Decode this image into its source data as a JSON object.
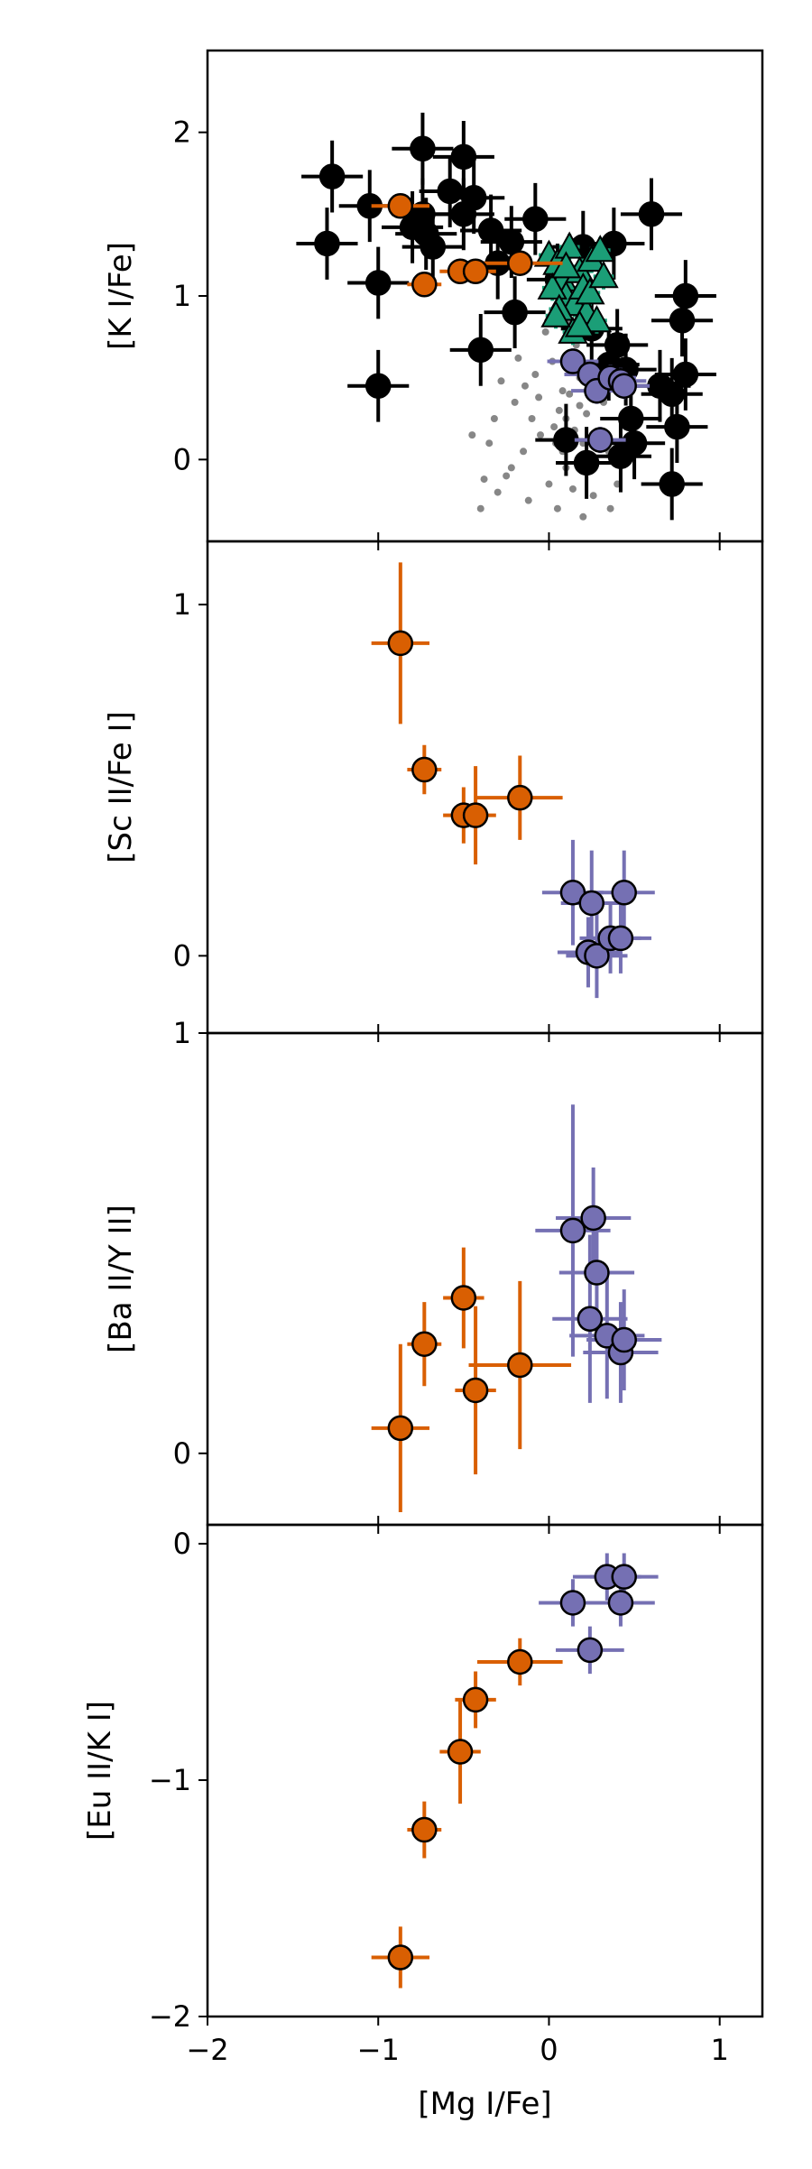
{
  "chart_data": [
    {
      "type": "scatter",
      "ylabel": "[K I/Fe]",
      "xlabel": "",
      "xlim": [
        -2,
        1.25
      ],
      "ylim": [
        -0.5,
        2.5
      ],
      "yticks": [
        0,
        1,
        2
      ],
      "yticklabels": [
        "0",
        "1",
        "2"
      ],
      "xticks": [
        -2,
        -1,
        0,
        1
      ],
      "series": [
        {
          "color": "#696969",
          "marker": "small-dot",
          "points": [
            [
              0.06,
              0.3
            ],
            [
              0.1,
              0.25
            ],
            [
              0.12,
              0.4
            ],
            [
              0.15,
              0.18
            ],
            [
              0.18,
              0.33
            ],
            [
              0.2,
              0.1
            ],
            [
              0.22,
              0.28
            ],
            [
              0.25,
              0.45
            ],
            [
              0.03,
              0.2
            ],
            [
              0.08,
              0.05
            ],
            [
              -0.05,
              0.15
            ],
            [
              -0.1,
              0.25
            ],
            [
              -0.15,
              0.05
            ],
            [
              -0.2,
              0.35
            ],
            [
              -0.25,
              -0.1
            ],
            [
              -0.3,
              -0.2
            ],
            [
              -0.35,
              0.1
            ],
            [
              -0.4,
              -0.3
            ],
            [
              -0.45,
              0.15
            ],
            [
              -0.28,
              0.48
            ],
            [
              0.28,
              0.15
            ],
            [
              0.32,
              0.35
            ],
            [
              0.35,
              0.05
            ],
            [
              0.4,
              -0.15
            ],
            [
              0.14,
              0.55
            ],
            [
              0.02,
              0.6
            ],
            [
              -0.08,
              0.52
            ],
            [
              0.16,
              0.7
            ],
            [
              0.1,
              -0.05
            ],
            [
              0.0,
              -0.15
            ],
            [
              -0.12,
              -0.25
            ],
            [
              0.05,
              -0.3
            ],
            [
              0.2,
              -0.35
            ],
            [
              -0.18,
              0.62
            ],
            [
              0.26,
              -0.22
            ],
            [
              0.12,
              0.85
            ],
            [
              -0.02,
              0.78
            ],
            [
              -0.22,
              -0.05
            ],
            [
              0.3,
              0.58
            ],
            [
              0.45,
              0.2
            ],
            [
              0.08,
              0.42
            ],
            [
              -0.32,
              0.25
            ],
            [
              0.18,
              0.5
            ],
            [
              -0.06,
              0.38
            ],
            [
              0.36,
              -0.3
            ],
            [
              -0.38,
              -0.12
            ],
            [
              0.24,
              0.0
            ],
            [
              0.04,
              0.1
            ],
            [
              -0.14,
              0.45
            ],
            [
              0.14,
              -0.18
            ]
          ]
        },
        {
          "color": "#000000",
          "marker": "circle",
          "points": [
            [
              -1.3,
              1.32
            ],
            [
              -1.27,
              1.73
            ],
            [
              -1.05,
              1.55
            ],
            [
              -1.0,
              1.08
            ],
            [
              -1.0,
              0.45
            ],
            [
              -0.8,
              1.42
            ],
            [
              -0.74,
              1.9
            ],
            [
              -0.74,
              1.5
            ],
            [
              -0.72,
              1.38
            ],
            [
              -0.68,
              1.3
            ],
            [
              -0.58,
              1.64
            ],
            [
              -0.5,
              1.85
            ],
            [
              -0.5,
              1.5
            ],
            [
              -0.44,
              1.6
            ],
            [
              -0.4,
              0.67
            ],
            [
              -0.34,
              1.4
            ],
            [
              -0.3,
              1.2
            ],
            [
              -0.22,
              1.33
            ],
            [
              -0.2,
              0.9
            ],
            [
              -0.08,
              1.47
            ],
            [
              0.05,
              1.1
            ],
            [
              0.1,
              0.12
            ],
            [
              0.2,
              1.3
            ],
            [
              0.25,
              0.8
            ],
            [
              0.35,
              0.58
            ],
            [
              0.38,
              1.32
            ],
            [
              0.4,
              0.7
            ],
            [
              0.42,
              0.02
            ],
            [
              0.45,
              0.55
            ],
            [
              0.48,
              0.25
            ],
            [
              0.5,
              0.1
            ],
            [
              0.6,
              1.5
            ],
            [
              0.65,
              0.45
            ],
            [
              0.72,
              0.4
            ],
            [
              0.72,
              -0.15
            ],
            [
              0.75,
              0.2
            ],
            [
              0.78,
              0.85
            ],
            [
              0.8,
              1.0
            ],
            [
              0.8,
              0.52
            ],
            [
              0.22,
              -0.02
            ]
          ],
          "xerr": 0.18,
          "yerr": 0.22
        },
        {
          "color": "#1b9e77",
          "marker": "triangle",
          "points": [
            [
              0.0,
              1.25
            ],
            [
              0.05,
              1.2
            ],
            [
              0.08,
              1.1
            ],
            [
              0.1,
              1.0
            ],
            [
              0.12,
              1.3
            ],
            [
              0.15,
              0.95
            ],
            [
              0.18,
              1.15
            ],
            [
              0.2,
              1.05
            ],
            [
              0.22,
              0.9
            ],
            [
              0.25,
              1.22
            ],
            [
              0.28,
              0.85
            ],
            [
              0.3,
              1.28
            ],
            [
              0.02,
              1.05
            ],
            [
              0.06,
              0.92
            ],
            [
              0.14,
              0.78
            ],
            [
              0.24,
              1.02
            ],
            [
              0.32,
              1.12
            ],
            [
              0.1,
              1.18
            ],
            [
              0.18,
              0.82
            ],
            [
              0.04,
              0.88
            ]
          ],
          "xerr": 0.06,
          "yerr": 0.08
        },
        {
          "color": "#d95f02",
          "marker": "circle",
          "points": [
            [
              -0.87,
              1.55
            ],
            [
              -0.73,
              1.07
            ],
            [
              -0.52,
              1.15
            ],
            [
              -0.43,
              1.15
            ],
            [
              -0.17,
              1.2
            ]
          ],
          "xerr": [
            0.17,
            0.1,
            0.12,
            0.12,
            0.25
          ],
          "yerr": 0.07
        },
        {
          "color": "#7570b3",
          "marker": "circle",
          "points": [
            [
              0.14,
              0.6
            ],
            [
              0.24,
              0.52
            ],
            [
              0.28,
              0.42
            ],
            [
              0.3,
              0.12
            ],
            [
              0.36,
              0.5
            ],
            [
              0.42,
              0.48
            ],
            [
              0.44,
              0.45
            ]
          ],
          "xerr": 0.15,
          "yerr": 0.08
        }
      ]
    },
    {
      "type": "scatter",
      "ylabel": "[Sc II/Fe I]",
      "xlabel": "",
      "xlim": [
        -2,
        1.25
      ],
      "ylim": [
        -0.22,
        1.18
      ],
      "yticks": [
        0,
        1
      ],
      "yticklabels": [
        "0",
        "1"
      ],
      "xticks": [
        -2,
        -1,
        0,
        1
      ],
      "series": [
        {
          "color": "#d95f02",
          "marker": "circle",
          "points": [
            [
              -0.87,
              0.89
            ],
            [
              -0.73,
              0.53
            ],
            [
              -0.5,
              0.4
            ],
            [
              -0.43,
              0.4
            ],
            [
              -0.17,
              0.45
            ]
          ],
          "xerr": [
            0.17,
            0.1,
            0.12,
            0.12,
            0.25
          ],
          "yerr": [
            0.23,
            0.07,
            0.08,
            0.14,
            0.12
          ]
        },
        {
          "color": "#7570b3",
          "marker": "circle",
          "points": [
            [
              0.14,
              0.18
            ],
            [
              0.25,
              0.15
            ],
            [
              0.23,
              0.01
            ],
            [
              0.28,
              0.0
            ],
            [
              0.36,
              0.05
            ],
            [
              0.42,
              0.05
            ],
            [
              0.44,
              0.18
            ]
          ],
          "xerr": 0.18,
          "yerr": [
            0.15,
            0.15,
            0.1,
            0.12,
            0.1,
            0.1,
            0.12
          ]
        }
      ]
    },
    {
      "type": "scatter",
      "ylabel": "[Ba II/Y II]",
      "xlabel": "",
      "xlim": [
        -2,
        1.25
      ],
      "ylim": [
        -0.17,
        1.0
      ],
      "yticks": [
        0,
        1
      ],
      "yticklabels": [
        "0",
        "1"
      ],
      "xticks": [
        -2,
        -1,
        0,
        1
      ],
      "series": [
        {
          "color": "#d95f02",
          "marker": "circle",
          "points": [
            [
              -0.87,
              0.06
            ],
            [
              -0.73,
              0.26
            ],
            [
              -0.5,
              0.37
            ],
            [
              -0.43,
              0.15
            ],
            [
              -0.17,
              0.21
            ]
          ],
          "xerr": [
            0.17,
            0.1,
            0.12,
            0.12,
            0.3
          ],
          "yerr": [
            0.2,
            0.1,
            0.12,
            0.2,
            0.2
          ]
        },
        {
          "color": "#7570b3",
          "marker": "circle",
          "points": [
            [
              0.14,
              0.53
            ],
            [
              0.26,
              0.56
            ],
            [
              0.28,
              0.43
            ],
            [
              0.24,
              0.32
            ],
            [
              0.34,
              0.28
            ],
            [
              0.42,
              0.24
            ],
            [
              0.44,
              0.27
            ]
          ],
          "xerr": 0.22,
          "yerr": [
            0.3,
            0.12,
            0.1,
            0.2,
            0.15,
            0.12,
            0.12
          ]
        }
      ]
    },
    {
      "type": "scatter",
      "ylabel": "[Eu II/K I]",
      "xlabel": "[Mg I/Fe]",
      "xlim": [
        -2,
        1.25
      ],
      "ylim": [
        -2.0,
        0.08
      ],
      "yticks": [
        -2,
        -1,
        0
      ],
      "yticklabels": [
        "−2",
        "−1",
        "0"
      ],
      "xticks": [
        -2,
        -1,
        0,
        1
      ],
      "xticklabels": [
        "−2",
        "−1",
        "0",
        "1"
      ],
      "series": [
        {
          "color": "#d95f02",
          "marker": "circle",
          "points": [
            [
              -0.87,
              -1.75
            ],
            [
              -0.73,
              -1.21
            ],
            [
              -0.52,
              -0.88
            ],
            [
              -0.43,
              -0.66
            ],
            [
              -0.17,
              -0.5
            ]
          ],
          "xerr": [
            0.17,
            0.1,
            0.12,
            0.12,
            0.25
          ],
          "yerr": [
            0.13,
            0.12,
            0.22,
            0.12,
            0.1
          ]
        },
        {
          "color": "#7570b3",
          "marker": "circle",
          "points": [
            [
              0.14,
              -0.25
            ],
            [
              0.24,
              -0.45
            ],
            [
              0.34,
              -0.14
            ],
            [
              0.42,
              -0.25
            ],
            [
              0.44,
              -0.14
            ]
          ],
          "xerr": 0.2,
          "yerr": 0.1
        }
      ]
    }
  ]
}
